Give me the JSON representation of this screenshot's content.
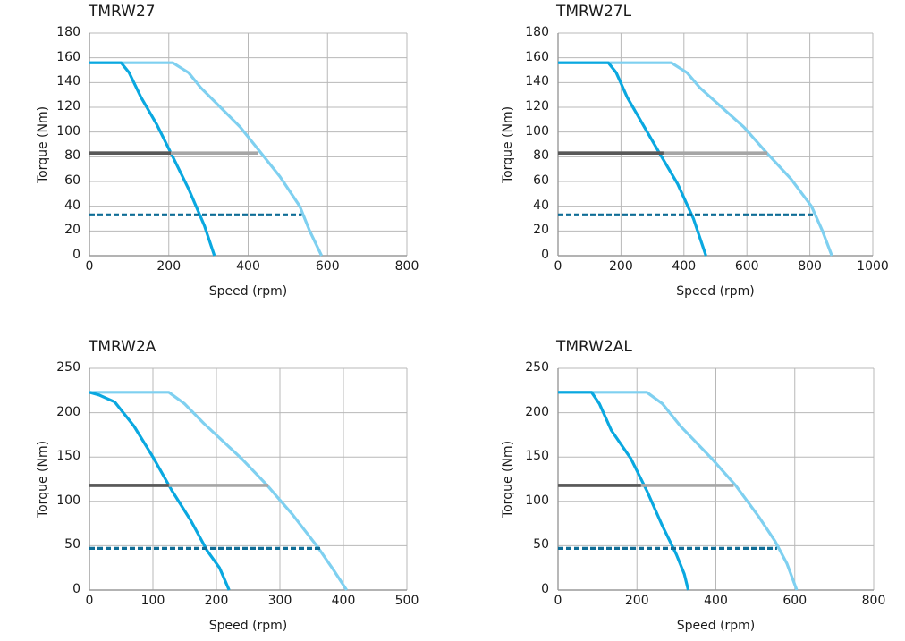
{
  "colors": {
    "grid": "#b8b8b8",
    "axis": "#9a9a9a",
    "curve_dark": "#0aa8e0",
    "curve_light": "#7fd0f0",
    "rated_dark": "#595959",
    "rated_light": "#a6a6a6",
    "dashed": "#0f6d96"
  },
  "chart_data": [
    {
      "type": "line",
      "title": "TMRW27",
      "xlabel": "Speed (rpm)",
      "ylabel": "Torque (Nm)",
      "xlim": [
        0,
        800
      ],
      "ylim": [
        0,
        180
      ],
      "xticks": [
        0,
        200,
        400,
        600,
        800
      ],
      "yticks": [
        0,
        20,
        40,
        60,
        80,
        100,
        120,
        140,
        160,
        180
      ],
      "grid": true,
      "series": [
        {
          "style": "curve-light",
          "x": [
            0,
            210,
            250,
            280,
            380,
            430,
            480,
            530,
            555,
            585
          ],
          "y": [
            156,
            156,
            148,
            136,
            104,
            84,
            64,
            40,
            20,
            0
          ]
        },
        {
          "style": "curve-dark",
          "x": [
            0,
            80,
            100,
            130,
            170,
            210,
            250,
            290,
            315
          ],
          "y": [
            156,
            156,
            148,
            128,
            106,
            80,
            54,
            24,
            0
          ]
        },
        {
          "style": "rated-light",
          "x": [
            0,
            425
          ],
          "y": [
            83,
            83
          ]
        },
        {
          "style": "rated-dark",
          "x": [
            0,
            205
          ],
          "y": [
            83,
            83
          ]
        },
        {
          "style": "dashed",
          "x": [
            0,
            535
          ],
          "y": [
            33,
            33
          ]
        }
      ]
    },
    {
      "type": "line",
      "title": "TMRW27L",
      "xlabel": "Speed (rpm)",
      "ylabel": "Torque (Nm)",
      "xlim": [
        0,
        1000
      ],
      "ylim": [
        0,
        180
      ],
      "xticks": [
        0,
        200,
        400,
        600,
        800,
        1000
      ],
      "yticks": [
        0,
        20,
        40,
        60,
        80,
        100,
        120,
        140,
        160,
        180
      ],
      "grid": true,
      "series": [
        {
          "style": "curve-light",
          "x": [
            0,
            360,
            410,
            450,
            590,
            660,
            740,
            805,
            840,
            870
          ],
          "y": [
            156,
            156,
            148,
            136,
            104,
            84,
            62,
            40,
            20,
            0
          ]
        },
        {
          "style": "curve-dark",
          "x": [
            0,
            160,
            185,
            220,
            270,
            320,
            380,
            430,
            470
          ],
          "y": [
            156,
            156,
            148,
            128,
            106,
            84,
            58,
            30,
            0
          ]
        },
        {
          "style": "rated-light",
          "x": [
            0,
            665
          ],
          "y": [
            83,
            83
          ]
        },
        {
          "style": "rated-dark",
          "x": [
            0,
            335
          ],
          "y": [
            83,
            83
          ]
        },
        {
          "style": "dashed",
          "x": [
            0,
            810
          ],
          "y": [
            33,
            33
          ]
        }
      ]
    },
    {
      "type": "line",
      "title": "TMRW2A",
      "xlabel": "Speed (rpm)",
      "ylabel": "Torque (Nm)",
      "xlim": [
        0,
        500
      ],
      "ylim": [
        0,
        250
      ],
      "xticks": [
        0,
        100,
        200,
        300,
        400,
        500
      ],
      "yticks": [
        0,
        50,
        100,
        150,
        200,
        250
      ],
      "grid": true,
      "series": [
        {
          "style": "curve-light",
          "x": [
            0,
            125,
            150,
            180,
            240,
            280,
            320,
            360,
            385,
            405
          ],
          "y": [
            223,
            223,
            210,
            188,
            148,
            118,
            85,
            48,
            22,
            0
          ]
        },
        {
          "style": "curve-dark",
          "x": [
            0,
            15,
            40,
            70,
            100,
            130,
            160,
            185,
            205,
            220
          ],
          "y": [
            223,
            220,
            212,
            185,
            150,
            112,
            78,
            45,
            25,
            0
          ]
        },
        {
          "style": "rated-light",
          "x": [
            0,
            282
          ],
          "y": [
            118,
            118
          ]
        },
        {
          "style": "rated-dark",
          "x": [
            0,
            125
          ],
          "y": [
            118,
            118
          ]
        },
        {
          "style": "dashed",
          "x": [
            0,
            365
          ],
          "y": [
            47,
            47
          ]
        }
      ]
    },
    {
      "type": "line",
      "title": "TMRW2AL",
      "xlabel": "Speed (rpm)",
      "ylabel": "Torque (Nm)",
      "xlim": [
        0,
        800
      ],
      "ylim": [
        0,
        250
      ],
      "xticks": [
        0,
        200,
        400,
        600,
        800
      ],
      "yticks": [
        0,
        50,
        100,
        150,
        200,
        250
      ],
      "grid": true,
      "series": [
        {
          "style": "curve-light",
          "x": [
            0,
            225,
            265,
            310,
            390,
            450,
            510,
            550,
            580,
            605
          ],
          "y": [
            223,
            223,
            210,
            185,
            148,
            118,
            82,
            55,
            30,
            0
          ]
        },
        {
          "style": "curve-dark",
          "x": [
            0,
            85,
            105,
            135,
            185,
            225,
            265,
            300,
            320,
            330
          ],
          "y": [
            223,
            223,
            210,
            180,
            148,
            112,
            72,
            40,
            18,
            0
          ]
        },
        {
          "style": "rated-light",
          "x": [
            0,
            445
          ],
          "y": [
            118,
            118
          ]
        },
        {
          "style": "rated-dark",
          "x": [
            0,
            210
          ],
          "y": [
            118,
            118
          ]
        },
        {
          "style": "dashed",
          "x": [
            0,
            555
          ],
          "y": [
            47,
            47
          ]
        }
      ]
    }
  ]
}
